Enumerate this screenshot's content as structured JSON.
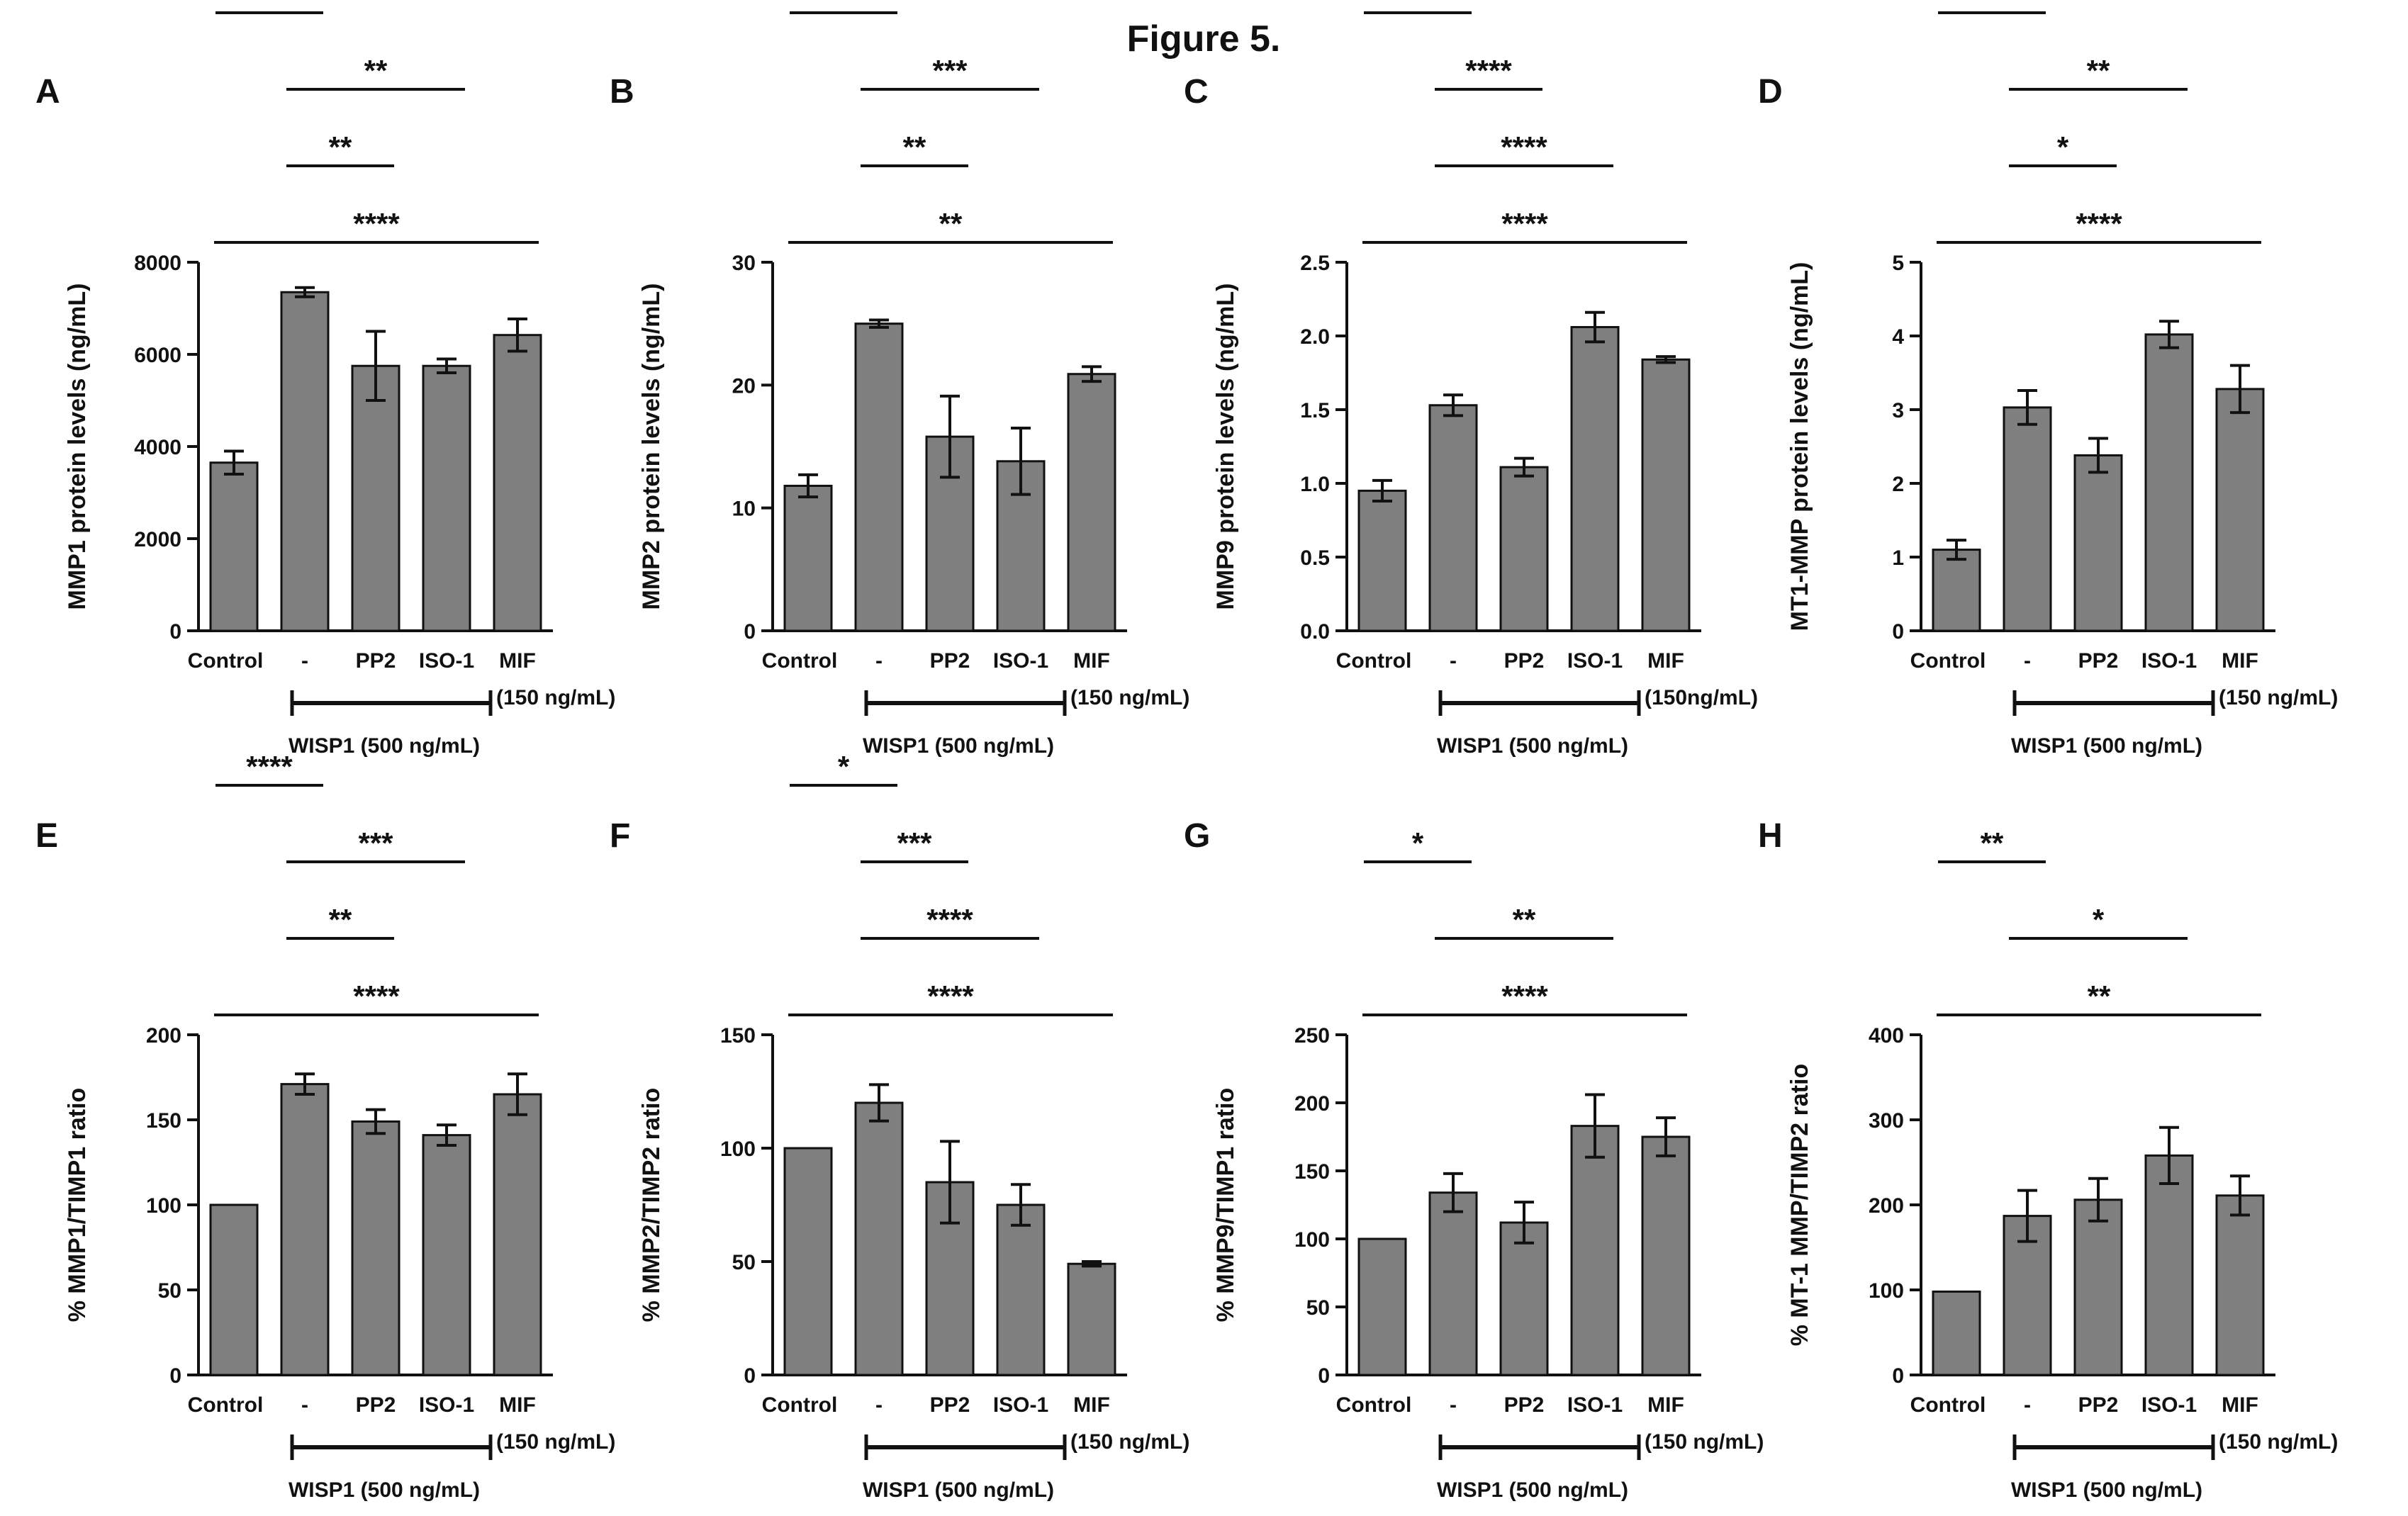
{
  "figure": {
    "title": "Figure 5.",
    "colors": {
      "bar": "#7f7f7f",
      "ink": "#111111"
    }
  },
  "chart_data": [
    {
      "panel": "A",
      "type": "bar",
      "ylabel": "MMP1 protein levels (ng/mL)",
      "ylim": [
        0,
        8000
      ],
      "yticks": [
        0,
        2000,
        4000,
        6000,
        8000
      ],
      "categories": [
        "Control",
        "-",
        "PP2",
        "ISO-1",
        "MIF"
      ],
      "values": [
        3650,
        7350,
        5750,
        5750,
        6420
      ],
      "errors": [
        250,
        100,
        750,
        150,
        350
      ],
      "wisp1_label": "WISP1 (500 ng/mL)",
      "mif_note": "(150 ng/mL)",
      "comparisons": [
        {
          "from": 0,
          "to": 1,
          "stars": "****"
        },
        {
          "from": 1,
          "to": 3,
          "stars": "**"
        },
        {
          "from": 1,
          "to": 2,
          "stars": "**"
        },
        {
          "from": 0,
          "to": 4,
          "stars": "****"
        }
      ]
    },
    {
      "panel": "B",
      "type": "bar",
      "ylabel": "MMP2 protein levels (ng/mL)",
      "ylim": [
        0,
        30
      ],
      "yticks": [
        0,
        10,
        20,
        30
      ],
      "categories": [
        "Control",
        "-",
        "PP2",
        "ISO-1",
        "MIF"
      ],
      "values": [
        11.8,
        25.0,
        15.8,
        13.8,
        20.9
      ],
      "errors": [
        0.9,
        0.3,
        3.3,
        2.7,
        0.6
      ],
      "wisp1_label": "WISP1 (500 ng/mL)",
      "mif_note": "(150 ng/mL)",
      "comparisons": [
        {
          "from": 0,
          "to": 1,
          "stars": "****"
        },
        {
          "from": 1,
          "to": 3,
          "stars": "***"
        },
        {
          "from": 1,
          "to": 2,
          "stars": "**"
        },
        {
          "from": 0,
          "to": 4,
          "stars": "**"
        }
      ]
    },
    {
      "panel": "C",
      "type": "bar",
      "ylabel": "MMP9 protein levels (ng/mL)",
      "ylim": [
        0,
        2.5
      ],
      "yticks": [
        "0.0",
        "0.5",
        "1.0",
        "1.5",
        "2.0",
        "2.5"
      ],
      "categories": [
        "Control",
        "-",
        "PP2",
        "ISO-1",
        "MIF"
      ],
      "values": [
        0.95,
        1.53,
        1.11,
        2.06,
        1.84
      ],
      "errors": [
        0.07,
        0.07,
        0.06,
        0.1,
        0.02
      ],
      "wisp1_label": "WISP1 (500 ng/mL)",
      "mif_note": "(150ng/mL)",
      "comparisons": [
        {
          "from": 0,
          "to": 1,
          "stars": "****"
        },
        {
          "from": 1,
          "to": 2,
          "stars": "****"
        },
        {
          "from": 1,
          "to": 3,
          "stars": "****"
        },
        {
          "from": 0,
          "to": 4,
          "stars": "****"
        }
      ]
    },
    {
      "panel": "D",
      "type": "bar",
      "ylabel": "MT1-MMP protein levels (ng/mL)",
      "ylim": [
        0,
        5
      ],
      "yticks": [
        0,
        1,
        2,
        3,
        4,
        5
      ],
      "categories": [
        "Control",
        "-",
        "PP2",
        "ISO-1",
        "MIF"
      ],
      "values": [
        1.1,
        3.03,
        2.38,
        4.02,
        3.28
      ],
      "errors": [
        0.13,
        0.23,
        0.23,
        0.18,
        0.32
      ],
      "wisp1_label": "WISP1 (500 ng/mL)",
      "mif_note": "(150 ng/mL)",
      "comparisons": [
        {
          "from": 0,
          "to": 1,
          "stars": "****"
        },
        {
          "from": 1,
          "to": 3,
          "stars": "**"
        },
        {
          "from": 1,
          "to": 2,
          "stars": "*"
        },
        {
          "from": 0,
          "to": 4,
          "stars": "****"
        }
      ]
    },
    {
      "panel": "E",
      "type": "bar",
      "ylabel": "% MMP1/TIMP1 ratio",
      "ylim": [
        0,
        200
      ],
      "yticks": [
        0,
        50,
        100,
        150,
        200
      ],
      "categories": [
        "Control",
        "-",
        "PP2",
        "ISO-1",
        "MIF"
      ],
      "values": [
        100,
        171,
        149,
        141,
        165
      ],
      "errors": [
        0,
        6,
        7,
        6,
        12
      ],
      "wisp1_label": "WISP1 (500 ng/mL)",
      "mif_note": "(150 ng/mL)",
      "comparisons": [
        {
          "from": 0,
          "to": 1,
          "stars": "****"
        },
        {
          "from": 1,
          "to": 3,
          "stars": "***"
        },
        {
          "from": 1,
          "to": 2,
          "stars": "**"
        },
        {
          "from": 0,
          "to": 4,
          "stars": "****"
        }
      ]
    },
    {
      "panel": "F",
      "type": "bar",
      "ylabel": "% MMP2/TIMP2 ratio",
      "ylim": [
        0,
        150
      ],
      "yticks": [
        0,
        50,
        100,
        150
      ],
      "categories": [
        "Control",
        "-",
        "PP2",
        "ISO-1",
        "MIF"
      ],
      "values": [
        100,
        120,
        85,
        75,
        49
      ],
      "errors": [
        0,
        8,
        18,
        9,
        1
      ],
      "wisp1_label": "WISP1 (500 ng/mL)",
      "mif_note": "(150 ng/mL)",
      "comparisons": [
        {
          "from": 0,
          "to": 1,
          "stars": "*"
        },
        {
          "from": 1,
          "to": 2,
          "stars": "***"
        },
        {
          "from": 1,
          "to": 3,
          "stars": "****"
        },
        {
          "from": 0,
          "to": 4,
          "stars": "****"
        }
      ]
    },
    {
      "panel": "G",
      "type": "bar",
      "ylabel": "% MMP9/TIMP1 ratio",
      "ylim": [
        0,
        250
      ],
      "yticks": [
        0,
        50,
        100,
        150,
        200,
        250
      ],
      "categories": [
        "Control",
        "-",
        "PP2",
        "ISO-1",
        "MIF"
      ],
      "values": [
        100,
        134,
        112,
        183,
        175
      ],
      "errors": [
        0,
        14,
        15,
        23,
        14
      ],
      "wisp1_label": "WISP1 (500 ng/mL)",
      "mif_note": "(150 ng/mL)",
      "comparisons": [
        {
          "from": 0,
          "to": 1,
          "stars": "*"
        },
        {
          "from": 1,
          "to": 3,
          "stars": "**"
        },
        {
          "from": 0,
          "to": 4,
          "stars": "****"
        }
      ]
    },
    {
      "panel": "H",
      "type": "bar",
      "ylabel": "% MT-1 MMP/TIMP2 ratio",
      "ylim": [
        0,
        400
      ],
      "yticks": [
        0,
        100,
        200,
        300,
        400
      ],
      "categories": [
        "Control",
        "-",
        "PP2",
        "ISO-1",
        "MIF"
      ],
      "values": [
        98,
        187,
        206,
        258,
        211
      ],
      "errors": [
        0,
        30,
        25,
        33,
        23
      ],
      "wisp1_label": "WISP1 (500 ng/mL)",
      "mif_note": "(150 ng/mL)",
      "comparisons": [
        {
          "from": 0,
          "to": 1,
          "stars": "**"
        },
        {
          "from": 1,
          "to": 3,
          "stars": "*"
        },
        {
          "from": 0,
          "to": 4,
          "stars": "**"
        }
      ]
    }
  ]
}
